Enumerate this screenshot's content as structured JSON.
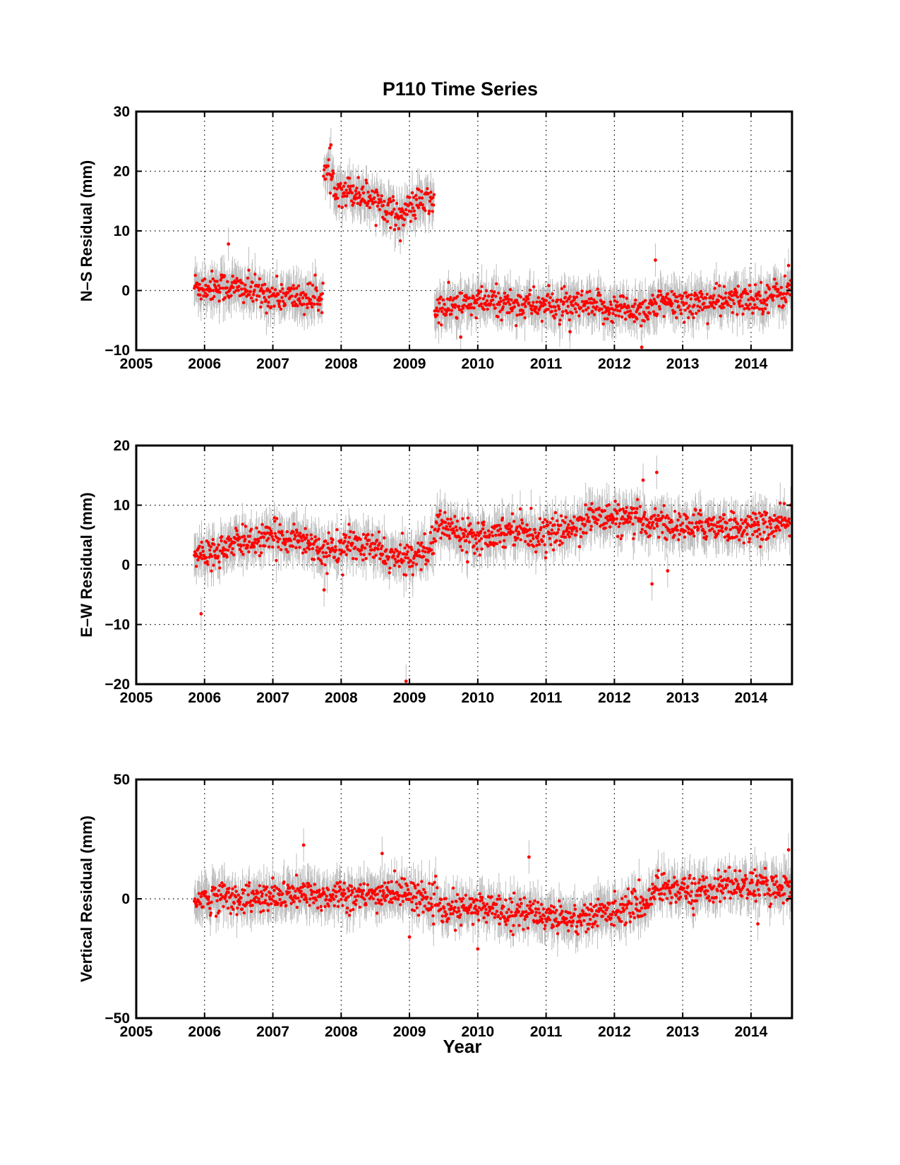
{
  "figure": {
    "title": "P110 Time Series",
    "xlabel": "Year"
  },
  "colors": {
    "point": "#ff0000",
    "errorbar": "#bdbdbd",
    "axis": "#000000",
    "grid": "#000000",
    "background": "#ffffff"
  },
  "chart_data": [
    {
      "type": "scatter",
      "ylabel": "N–S Residual (mm)",
      "xlim": [
        2005,
        2014.6
      ],
      "ylim": [
        -10,
        30
      ],
      "xticks": [
        2005,
        2006,
        2007,
        2008,
        2009,
        2010,
        2011,
        2012,
        2013,
        2014
      ],
      "yticks": [
        -10,
        0,
        10,
        20,
        30
      ],
      "ytick_labels": [
        "−10",
        "0",
        "10",
        "20",
        "30"
      ],
      "grid": true,
      "error_bars": true,
      "series": [
        {
          "x": [
            2005.85,
            2006.0,
            2006.2,
            2006.4,
            2006.6,
            2006.8,
            2007.0,
            2007.2,
            2007.4,
            2007.6,
            2007.7,
            2007.78,
            2007.9,
            2008.0,
            2008.2,
            2008.4,
            2008.6,
            2008.7,
            2008.8,
            2008.9,
            2009.0,
            2009.1,
            2009.2,
            2009.35,
            2009.38,
            2009.5,
            2009.7,
            2009.9,
            2010.1,
            2010.3,
            2010.5,
            2010.7,
            2010.9,
            2011.1,
            2011.3,
            2011.5,
            2011.7,
            2011.9,
            2012.1,
            2012.3,
            2012.48,
            2012.55,
            2012.7,
            2012.9,
            2013.1,
            2013.3,
            2013.5,
            2013.7,
            2013.9,
            2014.1,
            2014.3,
            2014.5,
            2014.58
          ],
          "y": [
            0.8,
            0.5,
            0.8,
            0.5,
            0.2,
            -0.5,
            -0.8,
            -1.0,
            -1.2,
            -1.3,
            -1.0,
            20.0,
            17.8,
            17.0,
            16.5,
            15.8,
            14.8,
            13.5,
            12.8,
            12.5,
            13.8,
            14.5,
            14.8,
            15.0,
            -3.5,
            -3.0,
            -2.5,
            -2.2,
            -2.0,
            -2.0,
            -2.2,
            -2.3,
            -2.5,
            -2.6,
            -2.8,
            -2.6,
            -2.8,
            -3.0,
            -3.0,
            -3.2,
            -3.2,
            -2.5,
            -2.3,
            -2.2,
            -2.1,
            -2.0,
            -1.8,
            -1.8,
            -1.5,
            -1.2,
            -0.8,
            -0.3,
            0.0
          ],
          "outliers": [
            [
              2006.35,
              7.8
            ],
            [
              2007.85,
              24.4
            ],
            [
              2009.75,
              -7.8
            ],
            [
              2011.35,
              -6.9
            ],
            [
              2012.4,
              -9.5
            ],
            [
              2012.6,
              5.1
            ],
            [
              2014.55,
              4.2
            ]
          ]
        }
      ]
    },
    {
      "type": "scatter",
      "ylabel": "E–W Residual (mm)",
      "xlim": [
        2005,
        2014.6
      ],
      "ylim": [
        -20,
        20
      ],
      "xticks": [
        2005,
        2006,
        2007,
        2008,
        2009,
        2010,
        2011,
        2012,
        2013,
        2014
      ],
      "yticks": [
        -20,
        -10,
        0,
        10,
        20
      ],
      "ytick_labels": [
        "−20",
        "−10",
        "0",
        "10",
        "20"
      ],
      "grid": true,
      "error_bars": true,
      "series": [
        {
          "x": [
            2005.85,
            2006.0,
            2006.2,
            2006.4,
            2006.6,
            2006.8,
            2007.0,
            2007.2,
            2007.4,
            2007.6,
            2007.75,
            2007.9,
            2008.1,
            2008.3,
            2008.5,
            2008.7,
            2008.8,
            2009.0,
            2009.2,
            2009.35,
            2009.4,
            2009.6,
            2009.8,
            2010.0,
            2010.2,
            2010.4,
            2010.6,
            2010.8,
            2011.0,
            2011.2,
            2011.4,
            2011.6,
            2011.8,
            2012.0,
            2012.2,
            2012.4,
            2012.5,
            2012.6,
            2012.8,
            2013.0,
            2013.2,
            2013.4,
            2013.6,
            2013.8,
            2014.0,
            2014.2,
            2014.4,
            2014.58
          ],
          "y": [
            1.8,
            1.5,
            2.5,
            3.2,
            4.2,
            4.0,
            4.5,
            4.8,
            4.3,
            3.5,
            2.0,
            2.5,
            3.5,
            3.0,
            2.8,
            1.5,
            0.8,
            1.5,
            2.2,
            3.0,
            7.0,
            6.2,
            5.5,
            5.0,
            5.2,
            5.8,
            6.2,
            5.0,
            5.2,
            5.5,
            6.2,
            7.8,
            8.0,
            7.8,
            7.5,
            7.2,
            7.0,
            7.8,
            6.5,
            6.3,
            6.5,
            6.8,
            6.5,
            6.2,
            6.3,
            6.5,
            6.7,
            6.8
          ],
          "outliers": [
            [
              2005.95,
              -8.2
            ],
            [
              2007.75,
              -4.2
            ],
            [
              2008.95,
              -19.5
            ],
            [
              2012.42,
              14.2
            ],
            [
              2012.55,
              -3.2
            ],
            [
              2012.62,
              15.5
            ],
            [
              2012.78,
              -1.0
            ],
            [
              2009.85,
              0.5
            ]
          ]
        }
      ]
    },
    {
      "type": "scatter",
      "ylabel": "Vertical Residual (mm)",
      "xlim": [
        2005,
        2014.6
      ],
      "ylim": [
        -50,
        50
      ],
      "xticks": [
        2005,
        2006,
        2007,
        2008,
        2009,
        2010,
        2011,
        2012,
        2013,
        2014
      ],
      "yticks": [
        -50,
        0,
        50
      ],
      "ytick_labels": [
        "−50",
        "0",
        "50"
      ],
      "grid": true,
      "error_bars": true,
      "series": [
        {
          "x": [
            2005.85,
            2006.0,
            2006.2,
            2006.4,
            2006.6,
            2006.8,
            2007.0,
            2007.2,
            2007.4,
            2007.6,
            2007.8,
            2008.0,
            2008.2,
            2008.4,
            2008.6,
            2008.8,
            2009.0,
            2009.2,
            2009.35,
            2009.5,
            2009.7,
            2009.9,
            2010.1,
            2010.3,
            2010.5,
            2010.7,
            2010.9,
            2011.1,
            2011.3,
            2011.5,
            2011.7,
            2011.9,
            2012.1,
            2012.3,
            2012.48,
            2012.6,
            2012.8,
            2013.0,
            2013.2,
            2013.4,
            2013.6,
            2013.8,
            2014.0,
            2014.2,
            2014.4,
            2014.58
          ],
          "y": [
            0.5,
            0.0,
            1.0,
            0.5,
            0.0,
            0.0,
            0.5,
            1.5,
            2.0,
            1.0,
            1.5,
            2.5,
            1.0,
            0.5,
            2.5,
            3.0,
            2.0,
            0.5,
            -2.0,
            -5.5,
            -4.5,
            -4.0,
            -3.5,
            -4.0,
            -5.5,
            -6.0,
            -6.5,
            -7.0,
            -8.0,
            -8.5,
            -7.0,
            -5.0,
            -4.0,
            -3.0,
            -2.0,
            5.0,
            4.5,
            3.5,
            3.0,
            4.5,
            5.5,
            6.0,
            5.5,
            5.0,
            5.0,
            5.5
          ],
          "outliers": [
            [
              2007.45,
              22.5
            ],
            [
              2008.6,
              19.0
            ],
            [
              2010.75,
              17.5
            ],
            [
              2009.0,
              -16.0
            ],
            [
              2010.0,
              -21.0
            ],
            [
              2014.1,
              -10.5
            ],
            [
              2014.55,
              20.5
            ]
          ]
        }
      ]
    }
  ]
}
